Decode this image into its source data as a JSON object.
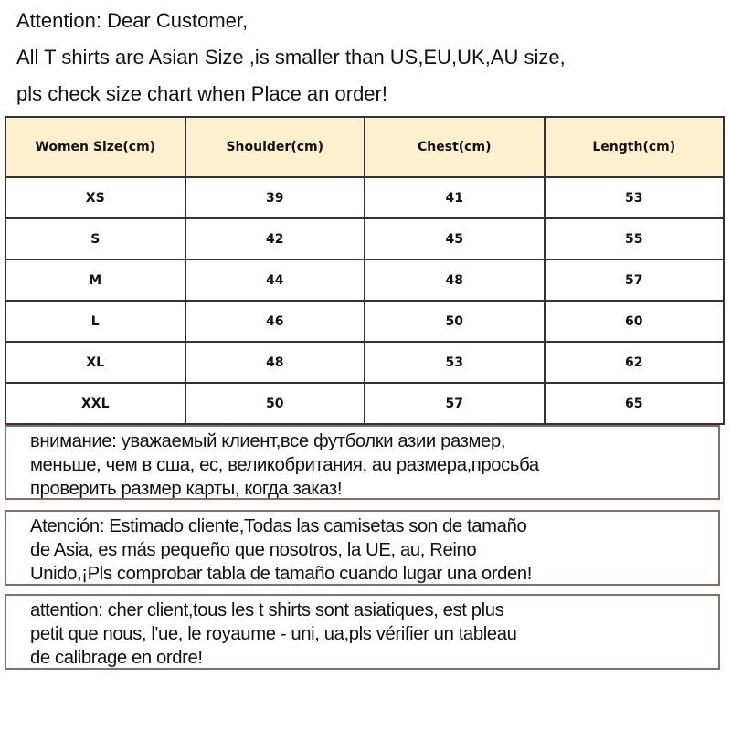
{
  "intro": [
    "Attention: Dear Customer,",
    "All T shirts are  Asian Size ,is smaller than US,EU,UK,AU size,",
    "pls check size chart when Place an order!"
  ],
  "table": {
    "headers": [
      "Women Size(cm)",
      "Shoulder(cm)",
      "Chest(cm)",
      "Length(cm)"
    ],
    "rows": [
      [
        "XS",
        "39",
        "41",
        "53"
      ],
      [
        "S",
        "42",
        "45",
        "55"
      ],
      [
        "M",
        "44",
        "48",
        "57"
      ],
      [
        "L",
        "46",
        "50",
        "60"
      ],
      [
        "XL",
        "48",
        "53",
        "62"
      ],
      [
        "XXL",
        "50",
        "57",
        "65"
      ]
    ],
    "header_color": "#fdf0cf"
  },
  "notes": [
    [
      "внимание: уважаемый клиент,все футболки азии размер,",
      "меньше, чем в сша, ес, великобритания, au размера,просьба",
      "проверить размер карты, когда заказ!"
    ],
    [
      "Atención: Estimado cliente,Todas las camisetas son de tamaño",
      "de Asia, es más pequeño que nosotros, la UE, au, Reino",
      "Unido,¡Pls comprobar tabla de tamaño cuando lugar una orden!"
    ],
    [
      "attention: cher client,tous les t shirts sont asiatiques, est plus",
      "petit que nous, l'ue, le royaume - uni, ua,pls vérifier un tableau",
      "de calibrage en ordre!"
    ]
  ]
}
